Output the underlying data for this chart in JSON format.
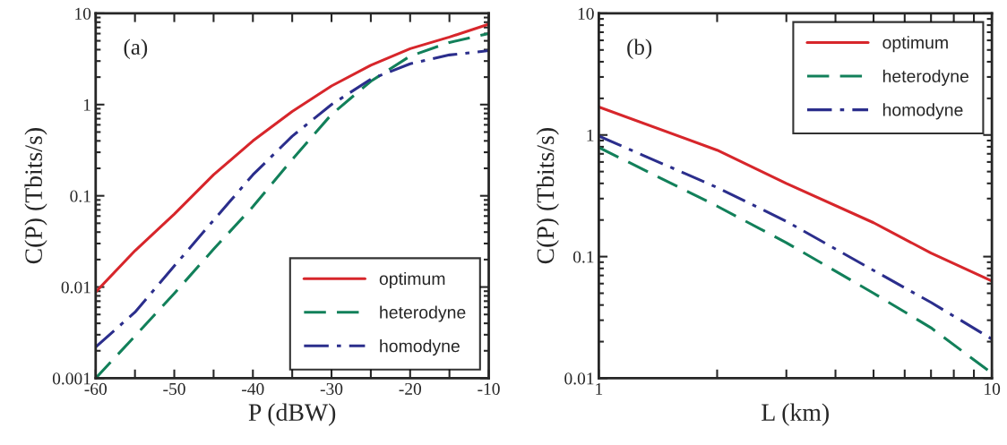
{
  "chart_data": [
    {
      "type": "line",
      "xlabel": "P (dBW)",
      "ylabel": "C(P) (Tbits/s)",
      "annotations": [
        "(a)"
      ],
      "x": [
        -60,
        -55,
        -50,
        -45,
        -40,
        -35,
        -30,
        -25,
        -20,
        -15,
        -10
      ],
      "series": [
        {
          "name": "optimum",
          "color": "#d7262b",
          "line_style": "solid",
          "values": [
            0.0088,
            0.025,
            0.063,
            0.17,
            0.4,
            0.84,
            1.6,
            2.7,
            4.1,
            5.5,
            7.6
          ]
        },
        {
          "name": "heterodyne",
          "color": "#12805a",
          "line_style": "dashed",
          "values": [
            0.001,
            0.0029,
            0.0085,
            0.026,
            0.076,
            0.25,
            0.78,
            1.8,
            3.4,
            4.8,
            6.0
          ]
        },
        {
          "name": "homodyne",
          "color": "#2b2e8c",
          "line_style": "dashdot",
          "values": [
            0.0022,
            0.0053,
            0.017,
            0.054,
            0.17,
            0.45,
            1.0,
            1.9,
            2.8,
            3.5,
            3.9
          ]
        }
      ],
      "log": "y",
      "xlim": [
        -60,
        -10
      ],
      "ylim": [
        0.001,
        10
      ],
      "xticks": [
        -60,
        {
          "value": -55,
          "label": null
        },
        -50,
        {
          "value": -45,
          "label": null
        },
        -40,
        {
          "value": -35,
          "label": null
        },
        -30,
        {
          "value": -25,
          "label": null
        },
        -20,
        {
          "value": -15,
          "label": null
        },
        -10
      ],
      "yticks": [
        0.001,
        0.01,
        0.1,
        1,
        10
      ],
      "legend": "bottom right",
      "grid": false
    },
    {
      "type": "line",
      "xlabel": "L (km)",
      "ylabel": "C(P) (Tbits/s)",
      "annotations": [
        "(b)"
      ],
      "x": [
        1,
        2,
        3,
        5,
        7,
        10
      ],
      "series": [
        {
          "name": "optimum",
          "color": "#d7262b",
          "line_style": "solid",
          "values": [
            1.7,
            0.75,
            0.4,
            0.19,
            0.107,
            0.063
          ]
        },
        {
          "name": "heterodyne",
          "color": "#12805a",
          "line_style": "dashed",
          "values": [
            0.79,
            0.26,
            0.13,
            0.05,
            0.026,
            0.011
          ]
        },
        {
          "name": "homodyne",
          "color": "#2b2e8c",
          "line_style": "dashdot",
          "values": [
            0.98,
            0.37,
            0.195,
            0.077,
            0.042,
            0.021
          ]
        }
      ],
      "log": "xy",
      "xlim": [
        1,
        10
      ],
      "ylim": [
        0.01,
        10
      ],
      "xticks": [
        1,
        {
          "value": 2,
          "label": null
        },
        {
          "value": 3,
          "label": null
        },
        {
          "value": 4,
          "label": null
        },
        {
          "value": 5,
          "label": null
        },
        {
          "value": 6,
          "label": null
        },
        {
          "value": 7,
          "label": null
        },
        {
          "value": 8,
          "label": null
        },
        {
          "value": 9,
          "label": null
        },
        10
      ],
      "yticks": [
        0.01,
        0.1,
        1,
        10
      ],
      "legend": "top right",
      "grid": false
    }
  ]
}
